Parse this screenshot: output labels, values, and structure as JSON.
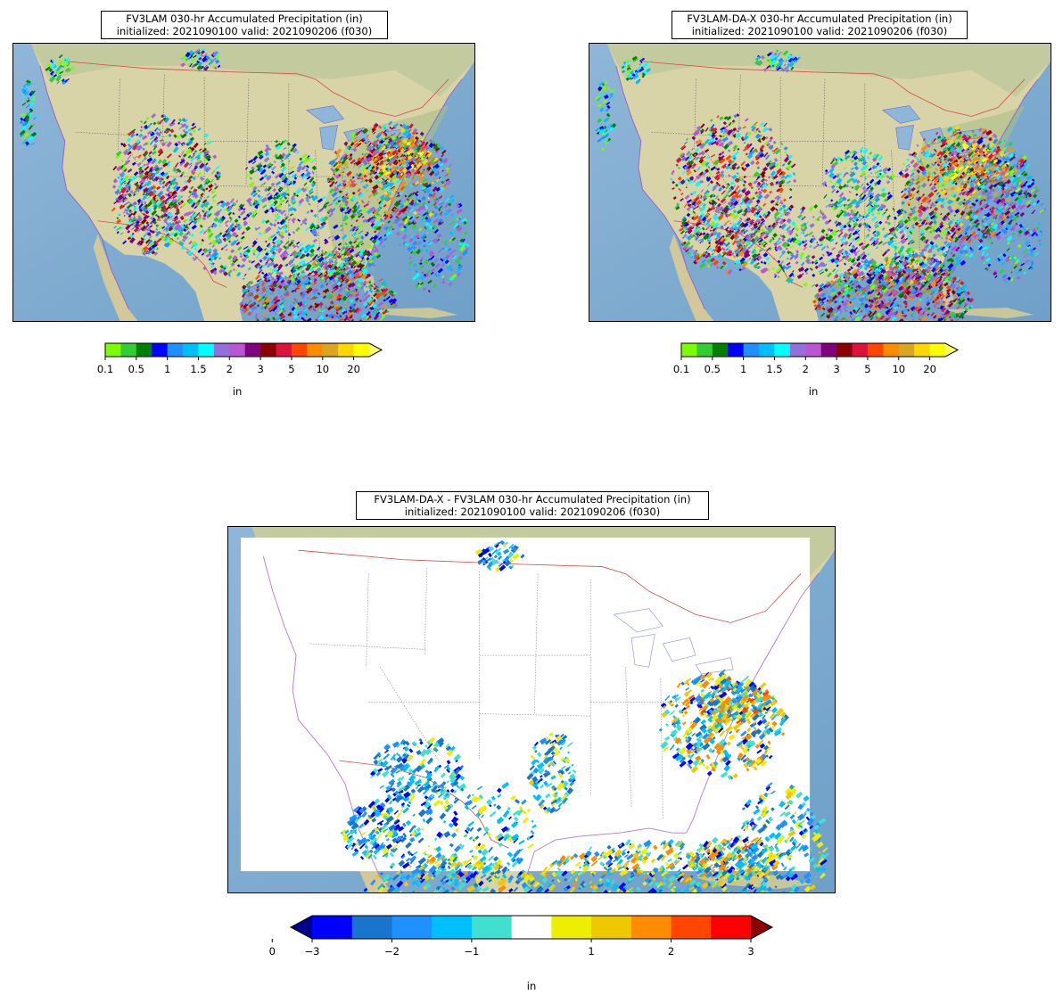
{
  "chart_data": [
    {
      "type": "heatmap",
      "title_line1": "FV3LAM 030-hr Accumulated Precipitation (in)",
      "title_line2": "initialized: 2021090100 valid: 2021090206 (f030)",
      "colorbar": {
        "label": "in",
        "bounds": [
          0.1,
          0.25,
          0.5,
          0.75,
          1,
          1.25,
          1.5,
          1.75,
          2,
          2.5,
          3,
          4,
          5,
          7,
          10,
          15,
          20
        ],
        "tick_values": [
          0.1,
          0.5,
          1,
          1.5,
          2,
          3,
          5,
          10,
          20
        ],
        "tick_labels": [
          "0.1",
          "0.5",
          "1",
          "1.5",
          "2",
          "3",
          "5",
          "10",
          "20"
        ],
        "colors": [
          "#7cfc00",
          "#32cd32",
          "#008000",
          "#0000ff",
          "#1e90ff",
          "#00bfff",
          "#00ffff",
          "#9370db",
          "#ba55d3",
          "#800080",
          "#8b0000",
          "#dc143c",
          "#ff4500",
          "#ff8c00",
          "#daa520",
          "#ffd700",
          "#ffff00"
        ],
        "extend": "max",
        "extend_color": "#ffff66"
      }
    },
    {
      "type": "heatmap",
      "title_line1": "FV3LAM-DA-X 030-hr Accumulated Precipitation (in)",
      "title_line2": "initialized: 2021090100 valid: 2021090206 (f030)",
      "colorbar": {
        "label": "in",
        "bounds": [
          0.1,
          0.25,
          0.5,
          0.75,
          1,
          1.25,
          1.5,
          1.75,
          2,
          2.5,
          3,
          4,
          5,
          7,
          10,
          15,
          20
        ],
        "tick_values": [
          0.1,
          0.5,
          1,
          1.5,
          2,
          3,
          5,
          10,
          20
        ],
        "tick_labels": [
          "0.1",
          "0.5",
          "1",
          "1.5",
          "2",
          "3",
          "5",
          "10",
          "20"
        ],
        "colors": [
          "#7cfc00",
          "#32cd32",
          "#008000",
          "#0000ff",
          "#1e90ff",
          "#00bfff",
          "#00ffff",
          "#9370db",
          "#ba55d3",
          "#800080",
          "#8b0000",
          "#dc143c",
          "#ff4500",
          "#ff8c00",
          "#daa520",
          "#ffd700",
          "#ffff00"
        ],
        "extend": "max",
        "extend_color": "#ffff66"
      }
    },
    {
      "type": "heatmap",
      "title_line1": "FV3LAM-DA-X - FV3LAM 030-hr Accumulated Precipitation (in)",
      "title_line2": "initialized: 2021090100 valid: 2021090206 (f030)",
      "colorbar": {
        "label": "in",
        "bounds": [
          -3,
          -2.5,
          -2,
          -1.5,
          -1,
          -0.5,
          0.5,
          1,
          1.5,
          2,
          2.5,
          3
        ],
        "tick_values": [
          -3,
          -2,
          -1,
          0,
          1,
          2,
          3
        ],
        "tick_labels": [
          "−3",
          "−2",
          "−1",
          "0",
          "1",
          "2",
          "3"
        ],
        "colors": [
          "#0000ff",
          "#1874cd",
          "#1e90ff",
          "#00bfff",
          "#40e0d0",
          "#ffffff",
          "#eeee00",
          "#eec900",
          "#ff8c00",
          "#ff4500",
          "#ff0000"
        ],
        "extend": "both",
        "extend_colors": [
          "#00008b",
          "#8b0000"
        ]
      }
    }
  ]
}
